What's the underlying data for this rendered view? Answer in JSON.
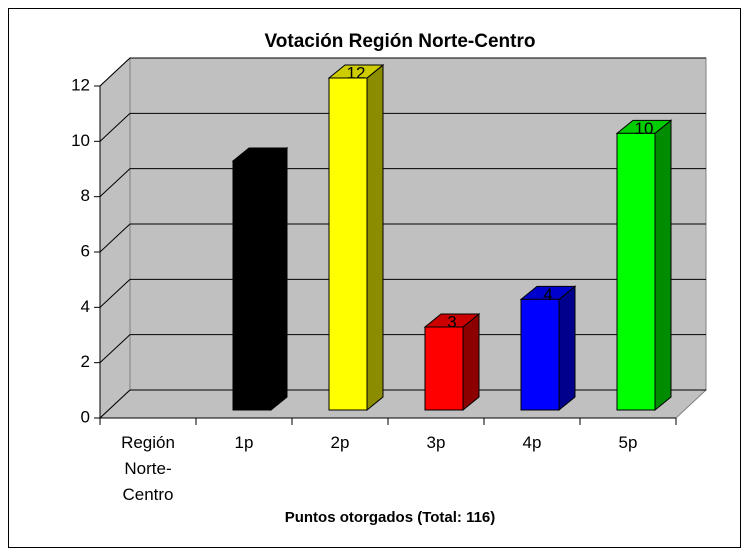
{
  "chart_data": {
    "type": "bar3d",
    "title": "Votación Región Norte-Centro",
    "x_label": "Puntos otorgados (Total: 116)",
    "categories": [
      "Región Norte-Centro",
      "1p",
      "2p",
      "3p",
      "4p",
      "5p"
    ],
    "values": [
      null,
      9,
      12,
      3,
      4,
      10
    ],
    "colors": [
      null,
      "#000000",
      "#ffff00",
      "#ff0000",
      "#0000ff",
      "#00ff00"
    ],
    "ylim": [
      0,
      12
    ],
    "yticks": [
      0,
      2,
      4,
      6,
      8,
      10,
      12
    ],
    "grid": true
  }
}
